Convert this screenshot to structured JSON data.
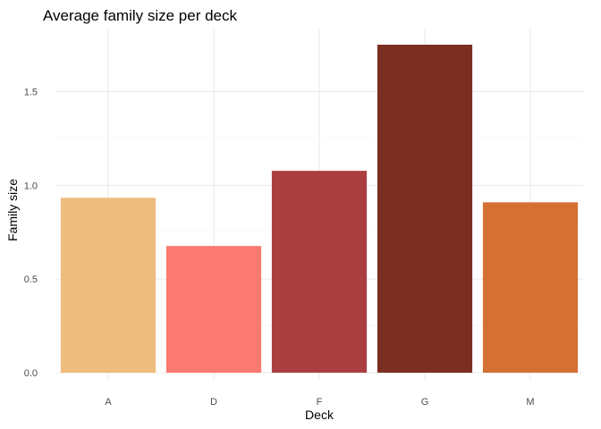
{
  "chart_data": {
    "type": "bar",
    "title": "Average family size per deck",
    "xlabel": "Deck",
    "ylabel": "Family size",
    "categories": [
      "A",
      "D",
      "F",
      "G",
      "M"
    ],
    "values": [
      0.933,
      0.676,
      1.077,
      1.75,
      0.909
    ],
    "colors": [
      "#EEBC7C",
      "#FA7970",
      "#AB3E40",
      "#7A2F20",
      "#D57035"
    ],
    "ylim": [
      0,
      1.75
    ],
    "yticks": [
      "0.0",
      "0.5",
      "1.0",
      "1.5"
    ],
    "grid": true,
    "legend": "none"
  }
}
